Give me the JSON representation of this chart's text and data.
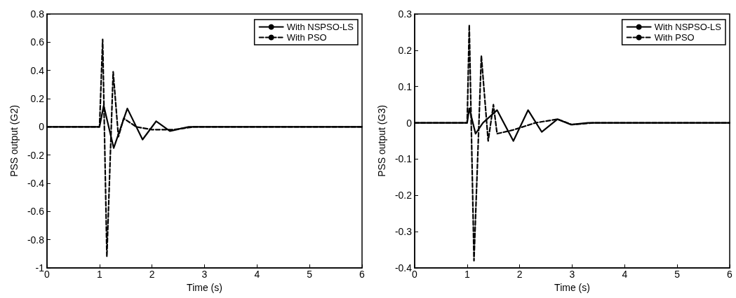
{
  "chart_data": [
    {
      "type": "line",
      "xlabel": "Time (s)",
      "ylabel": "PSS output (G2)",
      "xlim": [
        0,
        6
      ],
      "xticks": [
        0,
        1,
        2,
        3,
        4,
        5,
        6
      ],
      "ylim": [
        -1,
        0.8
      ],
      "yticks": [
        -1,
        -0.8,
        -0.6,
        -0.4,
        -0.2,
        0,
        0.2,
        0.4,
        0.6,
        0.8
      ],
      "grid": false,
      "legend": "top right",
      "marker": "none",
      "series": [
        {
          "name": "With NSPSO-LS",
          "color": "#000000",
          "line_style": "solid",
          "x": [
            0,
            1,
            1.08,
            1.27,
            1.53,
            1.82,
            2.08,
            2.34,
            2.7,
            6
          ],
          "values": [
            0,
            0,
            0.15,
            -0.15,
            0.13,
            -0.09,
            0.04,
            -0.03,
            0,
            0
          ]
        },
        {
          "name": "With PSO",
          "color": "#000000",
          "line_style": "dashed",
          "x": [
            0,
            1,
            1.06,
            1.14,
            1.26,
            1.36,
            1.46,
            1.7,
            2.0,
            2.4,
            2.8,
            6
          ],
          "values": [
            0,
            0,
            0.62,
            -0.92,
            0.39,
            -0.07,
            0.06,
            0,
            -0.02,
            -0.02,
            0,
            0
          ]
        }
      ]
    },
    {
      "type": "line",
      "xlabel": "Time (s)",
      "ylabel": "PSS output (G3)",
      "xlim": [
        0,
        6
      ],
      "xticks": [
        0,
        1,
        2,
        3,
        4,
        5,
        6
      ],
      "ylim": [
        -0.4,
        0.3
      ],
      "yticks": [
        -0.4,
        -0.3,
        -0.2,
        -0.1,
        0,
        0.1,
        0.2,
        0.3
      ],
      "grid": false,
      "legend": "top right",
      "marker": "none",
      "series": [
        {
          "name": "With NSPSO-LS",
          "color": "#000000",
          "line_style": "solid",
          "x": [
            0,
            1,
            1.04,
            1.16,
            1.3,
            1.57,
            1.88,
            2.16,
            2.42,
            2.72,
            2.98,
            3.3,
            6
          ],
          "values": [
            0,
            0,
            0.04,
            -0.03,
            0,
            0.035,
            -0.05,
            0.035,
            -0.025,
            0.01,
            -0.005,
            0,
            0
          ]
        },
        {
          "name": "With PSO",
          "color": "#000000",
          "line_style": "dashed",
          "x": [
            0,
            1,
            1.04,
            1.13,
            1.27,
            1.4,
            1.5,
            1.57,
            1.87,
            2.3,
            2.72,
            3.0,
            3.4,
            6
          ],
          "values": [
            0,
            0,
            0.27,
            -0.38,
            0.185,
            -0.05,
            0.05,
            -0.03,
            -0.02,
            0,
            0.01,
            -0.005,
            0,
            0
          ]
        }
      ]
    }
  ]
}
